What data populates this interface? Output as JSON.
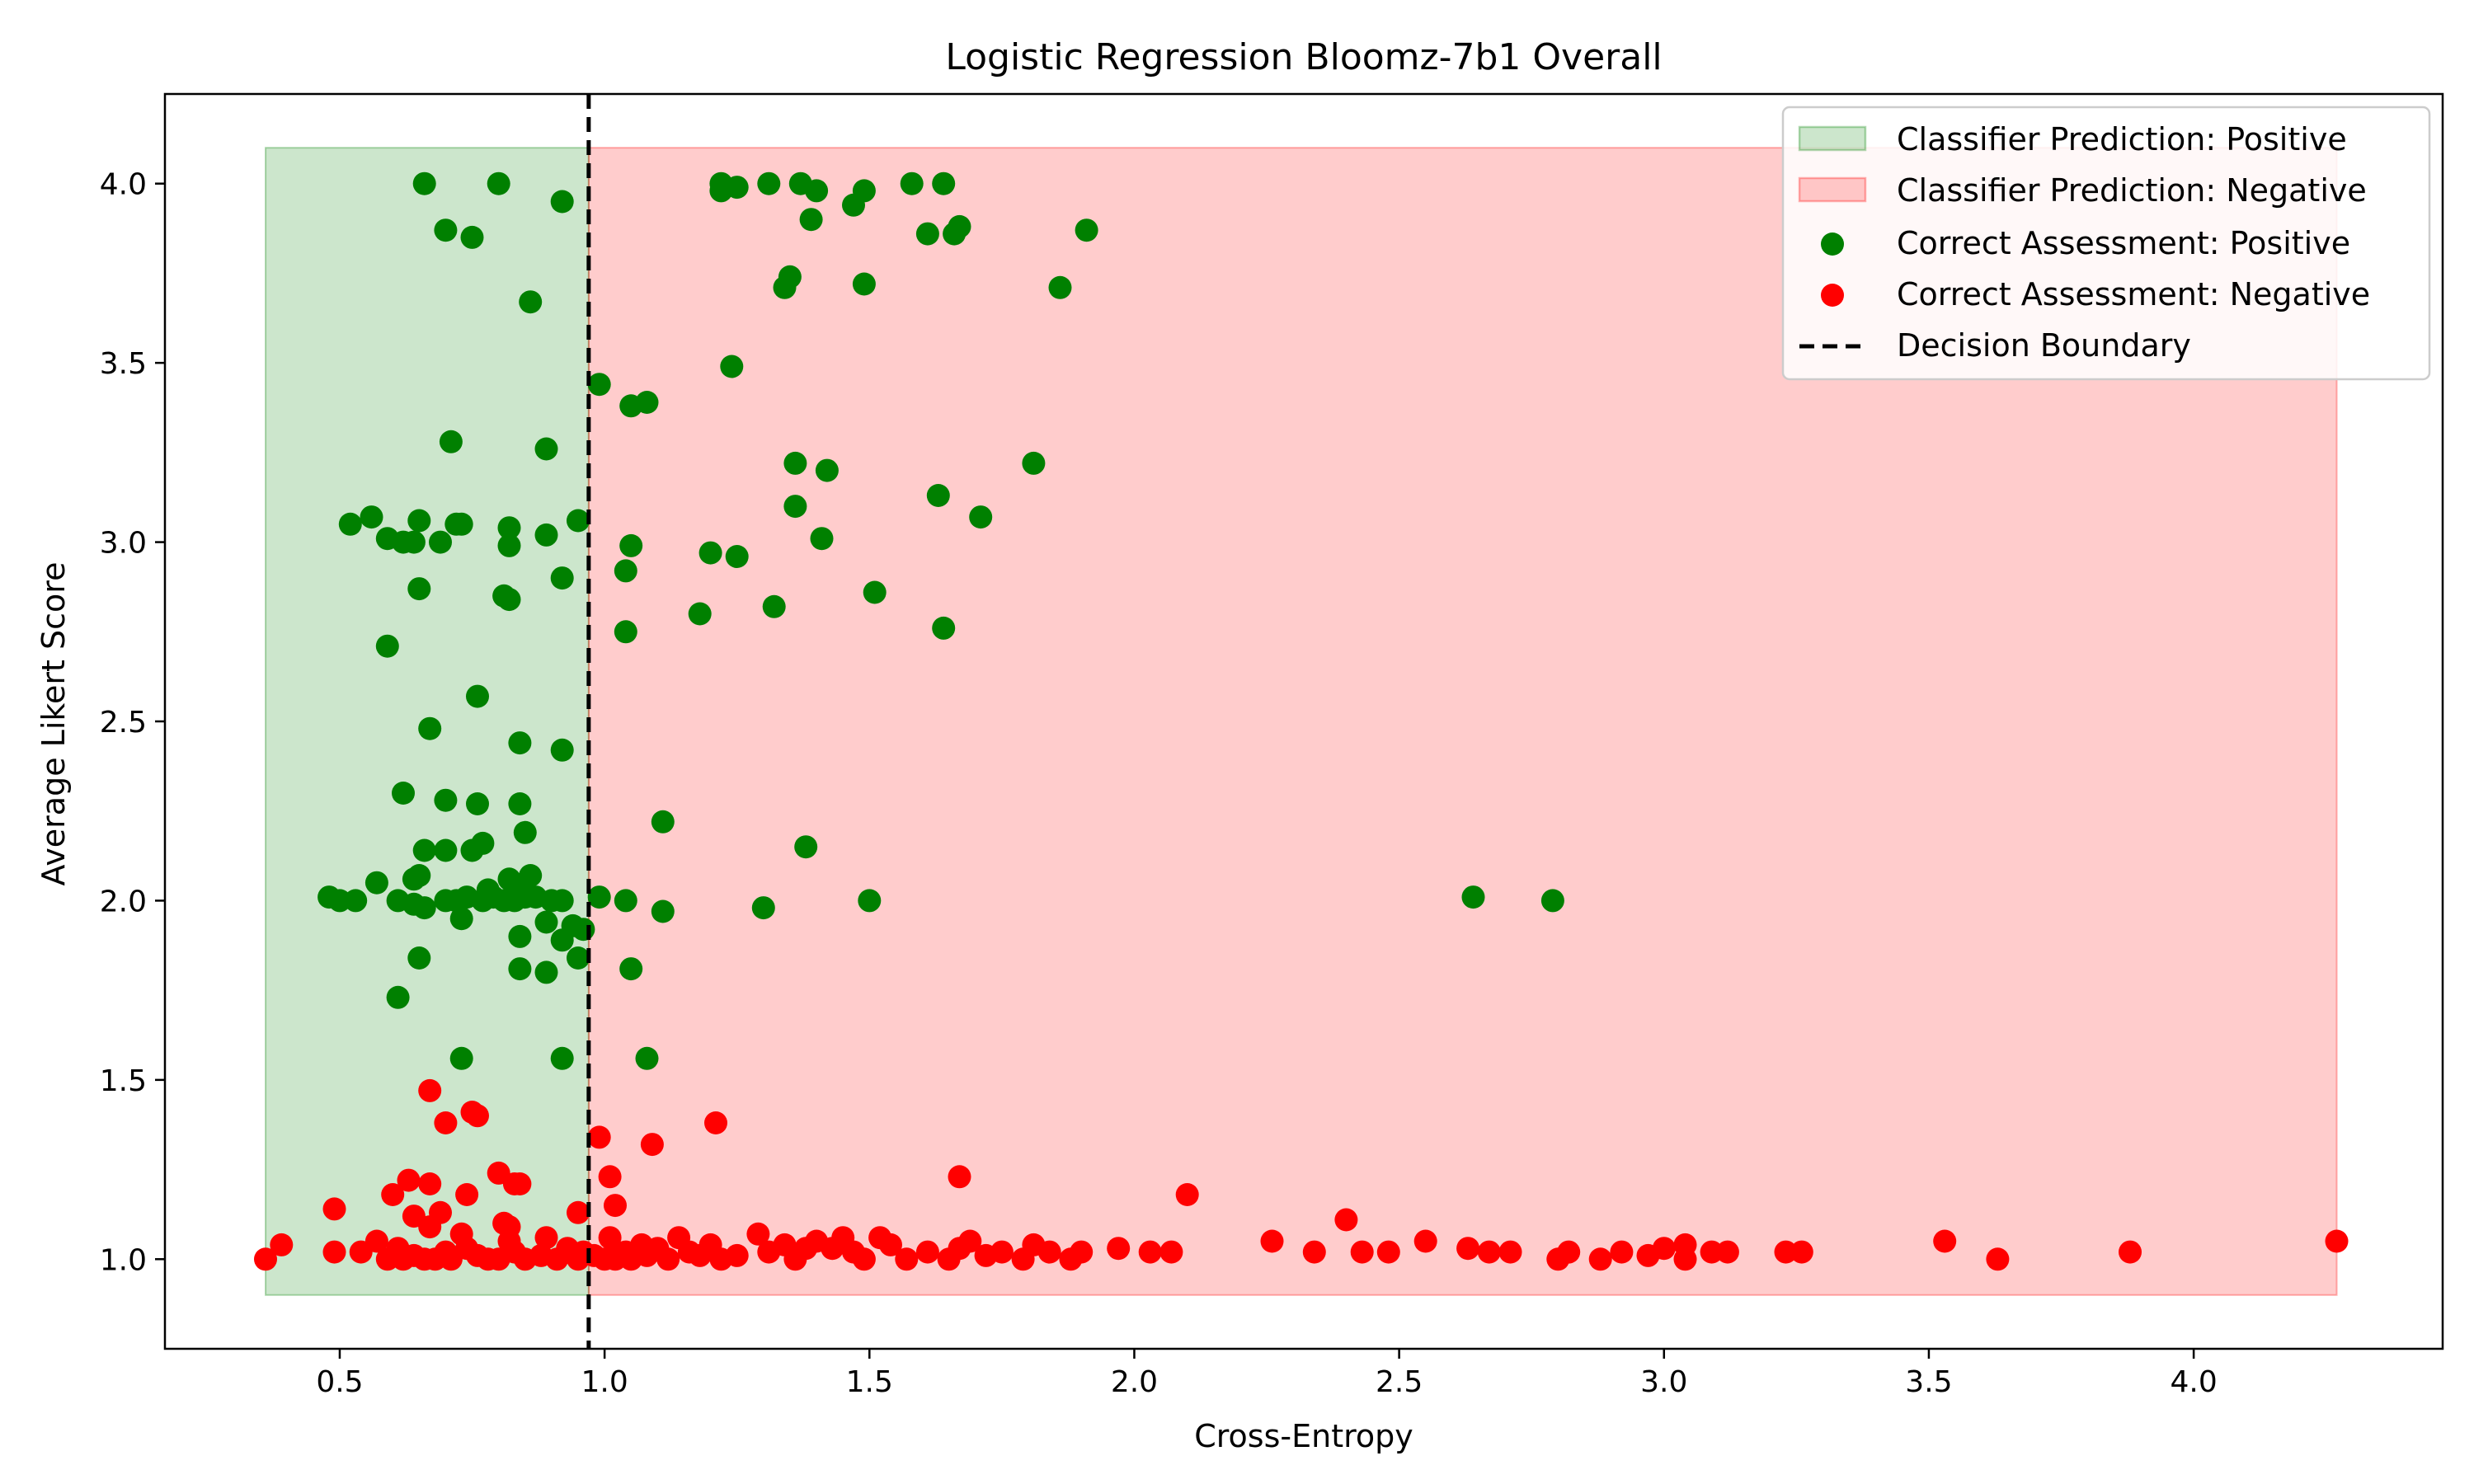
{
  "chart_data": {
    "type": "scatter",
    "title": "Logistic Regression Bloomz-7b1 Overall",
    "xlabel": "Cross-Entropy",
    "ylabel": "Average Likert Score",
    "xlim": [
      0.17,
      4.47
    ],
    "ylim": [
      0.75,
      4.25
    ],
    "x_ticks": [
      0.5,
      1.0,
      1.5,
      2.0,
      2.5,
      3.0,
      3.5,
      4.0
    ],
    "x_tick_labels": [
      "0.5",
      "1.0",
      "1.5",
      "2.0",
      "2.5",
      "3.0",
      "3.5",
      "4.0"
    ],
    "y_ticks": [
      1.0,
      1.5,
      2.0,
      2.5,
      3.0,
      3.5,
      4.0
    ],
    "y_tick_labels": [
      "1.0",
      "1.5",
      "2.0",
      "2.5",
      "3.0",
      "3.5",
      "4.0"
    ],
    "grid": false,
    "legend_position": "top-right",
    "decision_boundary": 0.97,
    "regions": [
      {
        "name": "Classifier Prediction: Positive",
        "x": [
          0.36,
          0.97
        ],
        "y": [
          0.9,
          4.1
        ],
        "color": "#008000",
        "opacity": 0.2
      },
      {
        "name": "Classifier Prediction: Negative",
        "x": [
          0.97,
          4.27
        ],
        "y": [
          0.9,
          4.1
        ],
        "color": "#ff0000",
        "opacity": 0.2
      }
    ],
    "series": [
      {
        "name": "Correct Assessment: Positive",
        "color": "#008000",
        "points": [
          [
            0.66,
            4.0
          ],
          [
            0.8,
            4.0
          ],
          [
            0.7,
            3.87
          ],
          [
            0.75,
            3.85
          ],
          [
            0.92,
            3.95
          ],
          [
            0.86,
            3.67
          ],
          [
            1.22,
            4.0
          ],
          [
            1.22,
            3.98
          ],
          [
            1.25,
            3.99
          ],
          [
            1.31,
            4.0
          ],
          [
            1.37,
            4.0
          ],
          [
            1.4,
            3.98
          ],
          [
            1.39,
            3.9
          ],
          [
            1.47,
            3.94
          ],
          [
            1.49,
            3.98
          ],
          [
            1.58,
            4.0
          ],
          [
            1.64,
            4.0
          ],
          [
            1.61,
            3.86
          ],
          [
            1.66,
            3.86
          ],
          [
            1.67,
            3.88
          ],
          [
            1.91,
            3.87
          ],
          [
            1.35,
            3.74
          ],
          [
            1.34,
            3.71
          ],
          [
            1.49,
            3.72
          ],
          [
            1.86,
            3.71
          ],
          [
            0.99,
            3.44
          ],
          [
            1.05,
            3.38
          ],
          [
            1.08,
            3.39
          ],
          [
            1.24,
            3.49
          ],
          [
            0.71,
            3.28
          ],
          [
            0.89,
            3.26
          ],
          [
            1.36,
            3.22
          ],
          [
            1.42,
            3.2
          ],
          [
            1.81,
            3.22
          ],
          [
            1.36,
            3.1
          ],
          [
            1.63,
            3.13
          ],
          [
            1.71,
            3.07
          ],
          [
            1.41,
            3.01
          ],
          [
            0.52,
            3.05
          ],
          [
            0.56,
            3.07
          ],
          [
            0.59,
            3.01
          ],
          [
            0.62,
            3.0
          ],
          [
            0.64,
            3.0
          ],
          [
            0.65,
            3.06
          ],
          [
            0.69,
            3.0
          ],
          [
            0.72,
            3.05
          ],
          [
            0.73,
            3.05
          ],
          [
            0.82,
            3.04
          ],
          [
            0.82,
            2.99
          ],
          [
            0.89,
            3.02
          ],
          [
            0.95,
            3.06
          ],
          [
            0.92,
            2.9
          ],
          [
            1.05,
            2.99
          ],
          [
            1.04,
            2.92
          ],
          [
            1.2,
            2.97
          ],
          [
            1.25,
            2.96
          ],
          [
            0.65,
            2.87
          ],
          [
            0.81,
            2.85
          ],
          [
            0.82,
            2.84
          ],
          [
            1.18,
            2.8
          ],
          [
            1.32,
            2.82
          ],
          [
            1.51,
            2.86
          ],
          [
            0.59,
            2.71
          ],
          [
            1.04,
            2.75
          ],
          [
            1.64,
            2.76
          ],
          [
            0.76,
            2.57
          ],
          [
            0.67,
            2.48
          ],
          [
            0.84,
            2.44
          ],
          [
            0.92,
            2.42
          ],
          [
            0.62,
            2.3
          ],
          [
            0.7,
            2.28
          ],
          [
            0.76,
            2.27
          ],
          [
            0.84,
            2.27
          ],
          [
            0.85,
            2.19
          ],
          [
            1.11,
            2.22
          ],
          [
            0.66,
            2.14
          ],
          [
            0.7,
            2.14
          ],
          [
            0.75,
            2.14
          ],
          [
            0.77,
            2.16
          ],
          [
            1.38,
            2.15
          ],
          [
            0.48,
            2.01
          ],
          [
            0.5,
            2.0
          ],
          [
            0.53,
            2.0
          ],
          [
            0.57,
            2.05
          ],
          [
            0.61,
            2.0
          ],
          [
            0.64,
            2.06
          ],
          [
            0.65,
            2.07
          ],
          [
            0.64,
            1.99
          ],
          [
            0.66,
            1.98
          ],
          [
            0.7,
            2.0
          ],
          [
            0.72,
            2.0
          ],
          [
            0.73,
            1.95
          ],
          [
            0.74,
            2.01
          ],
          [
            0.77,
            2.0
          ],
          [
            0.78,
            2.03
          ],
          [
            0.79,
            2.01
          ],
          [
            0.81,
            2.0
          ],
          [
            0.82,
            2.06
          ],
          [
            0.83,
            2.0
          ],
          [
            0.84,
            2.04
          ],
          [
            0.85,
            2.01
          ],
          [
            0.86,
            2.07
          ],
          [
            0.87,
            2.01
          ],
          [
            0.89,
            1.94
          ],
          [
            0.9,
            2.0
          ],
          [
            0.92,
            2.0
          ],
          [
            0.92,
            1.89
          ],
          [
            0.94,
            1.93
          ],
          [
            0.96,
            1.92
          ],
          [
            0.84,
            1.9
          ],
          [
            0.99,
            2.01
          ],
          [
            1.04,
            2.0
          ],
          [
            1.11,
            1.97
          ],
          [
            1.3,
            1.98
          ],
          [
            1.5,
            2.0
          ],
          [
            2.64,
            2.01
          ],
          [
            2.79,
            2.0
          ],
          [
            0.65,
            1.84
          ],
          [
            0.84,
            1.81
          ],
          [
            0.89,
            1.8
          ],
          [
            0.95,
            1.84
          ],
          [
            1.05,
            1.81
          ],
          [
            0.61,
            1.73
          ],
          [
            0.73,
            1.56
          ],
          [
            0.92,
            1.56
          ],
          [
            1.08,
            1.56
          ]
        ]
      },
      {
        "name": "Correct Assessment: Negative",
        "color": "#ff0000",
        "points": [
          [
            0.67,
            1.47
          ],
          [
            0.75,
            1.41
          ],
          [
            0.76,
            1.4
          ],
          [
            0.7,
            1.38
          ],
          [
            0.99,
            1.34
          ],
          [
            1.09,
            1.32
          ],
          [
            1.21,
            1.38
          ],
          [
            0.6,
            1.18
          ],
          [
            0.63,
            1.22
          ],
          [
            0.67,
            1.21
          ],
          [
            0.74,
            1.18
          ],
          [
            0.8,
            1.24
          ],
          [
            0.83,
            1.21
          ],
          [
            0.84,
            1.21
          ],
          [
            1.01,
            1.23
          ],
          [
            1.02,
            1.15
          ],
          [
            1.67,
            1.23
          ],
          [
            2.1,
            1.18
          ],
          [
            0.49,
            1.14
          ],
          [
            0.64,
            1.12
          ],
          [
            0.69,
            1.13
          ],
          [
            0.81,
            1.1
          ],
          [
            0.82,
            1.09
          ],
          [
            0.95,
            1.13
          ],
          [
            2.4,
            1.11
          ],
          [
            0.36,
            1.0
          ],
          [
            0.39,
            1.04
          ],
          [
            0.49,
            1.02
          ],
          [
            0.54,
            1.02
          ],
          [
            0.57,
            1.05
          ],
          [
            0.59,
            1.0
          ],
          [
            0.61,
            1.03
          ],
          [
            0.62,
            1.0
          ],
          [
            0.64,
            1.01
          ],
          [
            0.66,
            1.0
          ],
          [
            0.67,
            1.09
          ],
          [
            0.68,
            1.0
          ],
          [
            0.7,
            1.02
          ],
          [
            0.71,
            1.0
          ],
          [
            0.73,
            1.07
          ],
          [
            0.74,
            1.03
          ],
          [
            0.76,
            1.01
          ],
          [
            0.78,
            1.0
          ],
          [
            0.8,
            1.0
          ],
          [
            0.82,
            1.05
          ],
          [
            0.83,
            1.02
          ],
          [
            0.85,
            1.0
          ],
          [
            0.88,
            1.01
          ],
          [
            0.89,
            1.06
          ],
          [
            0.91,
            1.0
          ],
          [
            0.93,
            1.03
          ],
          [
            0.95,
            1.0
          ],
          [
            0.96,
            1.02
          ],
          [
            0.98,
            1.01
          ],
          [
            1.0,
            1.0
          ],
          [
            1.01,
            1.06
          ],
          [
            1.02,
            1.0
          ],
          [
            1.04,
            1.02
          ],
          [
            1.05,
            1.0
          ],
          [
            1.07,
            1.04
          ],
          [
            1.08,
            1.01
          ],
          [
            1.1,
            1.03
          ],
          [
            1.12,
            1.0
          ],
          [
            1.14,
            1.06
          ],
          [
            1.16,
            1.02
          ],
          [
            1.18,
            1.01
          ],
          [
            1.2,
            1.04
          ],
          [
            1.22,
            1.0
          ],
          [
            1.25,
            1.01
          ],
          [
            1.29,
            1.07
          ],
          [
            1.31,
            1.02
          ],
          [
            1.34,
            1.04
          ],
          [
            1.36,
            1.0
          ],
          [
            1.38,
            1.03
          ],
          [
            1.4,
            1.05
          ],
          [
            1.43,
            1.03
          ],
          [
            1.45,
            1.06
          ],
          [
            1.47,
            1.02
          ],
          [
            1.49,
            1.0
          ],
          [
            1.52,
            1.06
          ],
          [
            1.54,
            1.04
          ],
          [
            1.57,
            1.0
          ],
          [
            1.61,
            1.02
          ],
          [
            1.65,
            1.0
          ],
          [
            1.67,
            1.03
          ],
          [
            1.69,
            1.05
          ],
          [
            1.72,
            1.01
          ],
          [
            1.75,
            1.02
          ],
          [
            1.79,
            1.0
          ],
          [
            1.81,
            1.04
          ],
          [
            1.84,
            1.02
          ],
          [
            1.88,
            1.0
          ],
          [
            1.9,
            1.02
          ],
          [
            1.97,
            1.03
          ],
          [
            2.03,
            1.02
          ],
          [
            2.07,
            1.02
          ],
          [
            2.26,
            1.05
          ],
          [
            2.34,
            1.02
          ],
          [
            2.43,
            1.02
          ],
          [
            2.48,
            1.02
          ],
          [
            2.55,
            1.05
          ],
          [
            2.63,
            1.03
          ],
          [
            2.67,
            1.02
          ],
          [
            2.71,
            1.02
          ],
          [
            2.8,
            1.0
          ],
          [
            2.82,
            1.02
          ],
          [
            2.88,
            1.0
          ],
          [
            2.92,
            1.02
          ],
          [
            2.97,
            1.01
          ],
          [
            3.0,
            1.03
          ],
          [
            3.04,
            1.04
          ],
          [
            3.04,
            1.0
          ],
          [
            3.09,
            1.02
          ],
          [
            3.12,
            1.02
          ],
          [
            3.23,
            1.02
          ],
          [
            3.26,
            1.02
          ],
          [
            3.53,
            1.05
          ],
          [
            3.63,
            1.0
          ],
          [
            3.88,
            1.02
          ],
          [
            4.27,
            1.05
          ]
        ]
      }
    ],
    "boundary_label": "Decision Boundary"
  }
}
